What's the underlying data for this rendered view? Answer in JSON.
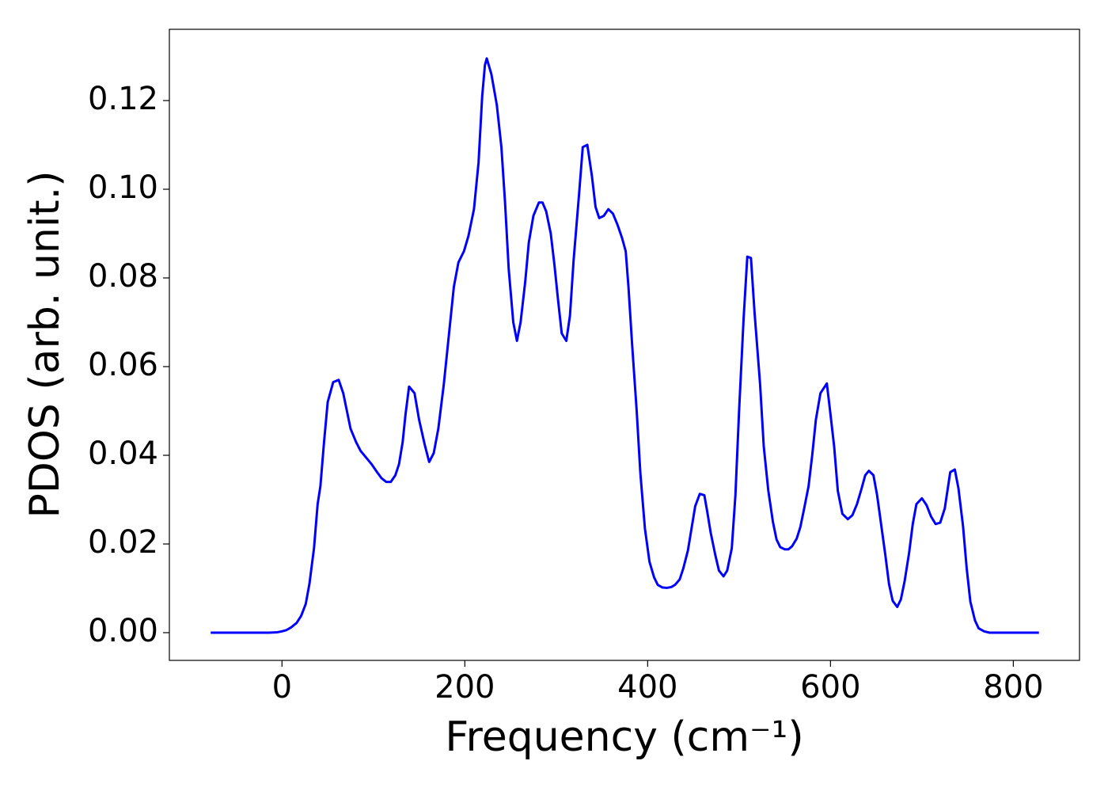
{
  "chart_data": {
    "type": "line",
    "xlabel": "Frequency (cm⁻¹)",
    "ylabel": "PDOS (arb. unit.)",
    "xlim": [
      -123.2,
      872.4
    ],
    "ylim": [
      -0.00625,
      0.13607
    ],
    "xticks": [
      0,
      200,
      400,
      600,
      800
    ],
    "yticks": [
      {
        "value": 0,
        "label": "0.00"
      },
      {
        "value": 0.02,
        "label": "0.02"
      },
      {
        "value": 0.04,
        "label": "0.04"
      },
      {
        "value": 0.06,
        "label": "0.06"
      },
      {
        "value": 0.08,
        "label": "0.08"
      },
      {
        "value": 0.1,
        "label": "0.10"
      },
      {
        "value": 0.12,
        "label": "0.12"
      }
    ],
    "series": [
      {
        "color": "#0000ff",
        "x": [
          -78,
          -14,
          -5,
          0,
          5,
          10,
          16,
          21,
          26,
          30,
          35,
          39,
          42,
          46,
          50,
          56,
          62,
          67,
          71,
          75,
          81,
          86,
          92,
          98,
          104,
          109,
          114,
          119,
          124,
          128,
          132,
          135,
          139,
          145,
          150,
          156,
          161,
          166,
          171,
          177,
          183,
          188,
          193,
          199,
          204,
          210,
          215,
          219,
          222,
          224,
          229,
          235,
          240,
          244,
          248,
          253,
          257,
          261,
          266,
          270,
          275,
          281,
          285,
          289,
          294,
          298,
          302,
          306,
          311,
          315,
          319,
          325,
          329,
          334,
          339,
          343,
          347,
          352,
          357,
          362,
          367,
          372,
          376,
          379,
          383,
          388,
          392,
          397,
          402,
          407,
          411,
          416,
          421,
          426,
          430,
          435,
          439,
          444,
          448,
          452,
          457,
          462,
          465,
          469,
          474,
          478,
          483,
          487,
          492,
          496,
          500,
          505,
          509,
          513,
          517,
          523,
          527,
          532,
          537,
          541,
          545,
          550,
          554,
          558,
          563,
          567,
          571,
          576,
          580,
          584,
          589,
          596,
          599,
          604,
          608,
          613,
          619,
          624,
          629,
          634,
          638,
          642,
          647,
          651,
          655,
          660,
          664,
          668,
          673,
          677,
          681,
          686,
          690,
          694,
          700,
          705,
          710,
          715,
          720,
          725,
          731,
          736,
          740,
          745,
          749,
          753,
          758,
          762,
          768,
          774,
          828
        ],
        "values": [
          0,
          0,
          0.0001,
          0.0003,
          0.0006,
          0.0012,
          0.0022,
          0.0038,
          0.0065,
          0.011,
          0.019,
          0.029,
          0.033,
          0.043,
          0.052,
          0.0565,
          0.057,
          0.054,
          0.05,
          0.046,
          0.043,
          0.041,
          0.0395,
          0.038,
          0.0362,
          0.0348,
          0.034,
          0.034,
          0.0355,
          0.038,
          0.043,
          0.049,
          0.0555,
          0.054,
          0.048,
          0.0425,
          0.0385,
          0.0405,
          0.046,
          0.056,
          0.068,
          0.078,
          0.0835,
          0.086,
          0.0895,
          0.0955,
          0.106,
          0.121,
          0.128,
          0.1295,
          0.126,
          0.119,
          0.1095,
          0.097,
          0.082,
          0.07,
          0.0658,
          0.07,
          0.079,
          0.088,
          0.094,
          0.097,
          0.097,
          0.095,
          0.09,
          0.083,
          0.075,
          0.0675,
          0.0658,
          0.0715,
          0.084,
          0.099,
          0.1095,
          0.11,
          0.103,
          0.096,
          0.0935,
          0.094,
          0.0955,
          0.0945,
          0.092,
          0.089,
          0.086,
          0.078,
          0.065,
          0.05,
          0.036,
          0.0235,
          0.016,
          0.0125,
          0.0108,
          0.0102,
          0.0101,
          0.0103,
          0.0108,
          0.012,
          0.0145,
          0.0185,
          0.0235,
          0.0285,
          0.0313,
          0.031,
          0.0275,
          0.0225,
          0.0175,
          0.014,
          0.0127,
          0.014,
          0.019,
          0.031,
          0.05,
          0.071,
          0.0848,
          0.0845,
          0.072,
          0.056,
          0.042,
          0.032,
          0.025,
          0.021,
          0.0193,
          0.0188,
          0.0188,
          0.0195,
          0.0212,
          0.0238,
          0.0278,
          0.033,
          0.04,
          0.048,
          0.054,
          0.0562,
          0.051,
          0.042,
          0.032,
          0.0268,
          0.0256,
          0.0265,
          0.029,
          0.0325,
          0.0355,
          0.0365,
          0.0355,
          0.031,
          0.025,
          0.0175,
          0.011,
          0.0072,
          0.0058,
          0.0075,
          0.0115,
          0.018,
          0.0245,
          0.029,
          0.0303,
          0.0288,
          0.0262,
          0.0245,
          0.0248,
          0.028,
          0.0362,
          0.0368,
          0.0325,
          0.024,
          0.0145,
          0.007,
          0.0028,
          0.001,
          0.0003,
          0,
          0
        ]
      }
    ]
  }
}
